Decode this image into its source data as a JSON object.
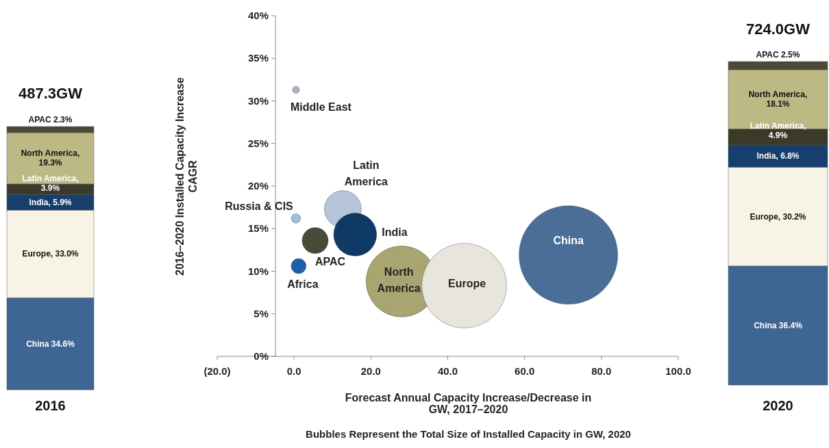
{
  "chart_data": [
    {
      "type": "bar",
      "stacked": true,
      "title": "487.3GW",
      "categories": [
        "2016"
      ],
      "series": [
        {
          "color": "#3f6593",
          "values": [
            34.6
          ],
          "value_labels": [
            "China  34.6%"
          ]
        },
        {
          "color": "#f7f4e6",
          "values": [
            33.0
          ],
          "value_labels": [
            "Europe, 33.0%"
          ]
        },
        {
          "color": "#173f6e",
          "values": [
            5.9
          ],
          "value_labels": [
            "India, 5.9%"
          ]
        },
        {
          "color": "#3b3a2a",
          "values": [
            3.9
          ],
          "value_labels": [
            "Latin America, 3.9%"
          ]
        },
        {
          "color": "#bdb985",
          "values": [
            19.3
          ],
          "value_labels": [
            "North America, 19.3%"
          ]
        },
        {
          "color": "#4b4a38",
          "values": [
            2.3
          ],
          "value_labels": [
            "APAC 2.3%"
          ]
        }
      ]
    },
    {
      "type": "bubble",
      "xlabel": "Forecast Annual Capacity Increase/Decrease in GW, 2017–2020",
      "ylabel": "2016–2020 Installed Capacity Increase CAGR",
      "annotations": [
        "Bubbles Represent the Total Size of Installed Capacity in GW, 2020"
      ],
      "xlim": [
        -20,
        100
      ],
      "xticks": [
        {
          "value": -20,
          "label": "(20.0)"
        },
        {
          "value": 0,
          "label": "0.0"
        },
        {
          "value": 20,
          "label": "20.0"
        },
        {
          "value": 40,
          "label": "40.0"
        },
        {
          "value": 60,
          "label": "60.0"
        },
        {
          "value": 80,
          "label": "80.0"
        },
        {
          "value": 100,
          "label": "100.0"
        }
      ],
      "ylim": [
        0,
        40
      ],
      "yticks": [
        {
          "value": 0,
          "label": "0%"
        },
        {
          "value": 5,
          "label": "5%"
        },
        {
          "value": 10,
          "label": "10%"
        },
        {
          "value": 15,
          "label": "15%"
        },
        {
          "value": 20,
          "label": "20%"
        },
        {
          "value": 25,
          "label": "25%"
        },
        {
          "value": 30,
          "label": "30%"
        },
        {
          "value": 35,
          "label": "35%"
        },
        {
          "value": 40,
          "label": "40%"
        }
      ],
      "series": [
        {
          "name": "Middle East",
          "color": "#a9b4c4",
          "x": [
            0.5
          ],
          "values": [
            31.3
          ],
          "sizes": [
            0.005
          ]
        },
        {
          "name": "Russia & CIS",
          "color": "#9cc0dc",
          "x": [
            0.5
          ],
          "values": [
            16.2
          ],
          "sizes": [
            0.009
          ]
        },
        {
          "name": "Africa",
          "color": "#1f5fa8",
          "x": [
            1.2
          ],
          "values": [
            10.6
          ],
          "sizes": [
            0.023
          ]
        },
        {
          "name": "APAC",
          "color": "#4a4a38",
          "x": [
            5.5
          ],
          "values": [
            13.6
          ],
          "sizes": [
            0.07
          ]
        },
        {
          "name": "Latin America",
          "color": "#b6c4d8",
          "x": [
            12.7
          ],
          "values": [
            17.3
          ],
          "sizes": [
            0.14
          ]
        },
        {
          "name": "India",
          "color": "#0f3a66",
          "x": [
            15.9
          ],
          "values": [
            14.3
          ],
          "sizes": [
            0.19
          ]
        },
        {
          "name": "North America",
          "color": "#a8a570",
          "x": [
            28
          ],
          "values": [
            8.8
          ],
          "sizes": [
            0.52
          ]
        },
        {
          "name": "Europe",
          "color": "#e8e6dc",
          "x": [
            44.3
          ],
          "values": [
            8.3
          ],
          "sizes": [
            0.74
          ]
        },
        {
          "name": "China",
          "color": "#4a6e98",
          "x": [
            71.4
          ],
          "values": [
            11.9
          ],
          "sizes": [
            1
          ]
        }
      ]
    },
    {
      "type": "bar",
      "stacked": true,
      "title": "724.0GW",
      "categories": [
        "2020"
      ],
      "series": [
        {
          "color": "#3f6593",
          "values": [
            36.4
          ],
          "value_labels": [
            "China  36.4%"
          ]
        },
        {
          "color": "#f7f4e6",
          "values": [
            30.2
          ],
          "value_labels": [
            "Europe, 30.2%"
          ]
        },
        {
          "color": "#173f6e",
          "values": [
            6.8
          ],
          "value_labels": [
            "India, 6.8%"
          ]
        },
        {
          "color": "#3b3a2a",
          "values": [
            4.9
          ],
          "value_labels": [
            "Latin America, 4.9%"
          ]
        },
        {
          "color": "#bdb985",
          "values": [
            18.1
          ],
          "value_labels": [
            "North America, 18.1%"
          ]
        },
        {
          "color": "#4b4a38",
          "values": [
            2.5
          ],
          "value_labels": [
            "APAC 2.5%"
          ]
        }
      ]
    }
  ]
}
